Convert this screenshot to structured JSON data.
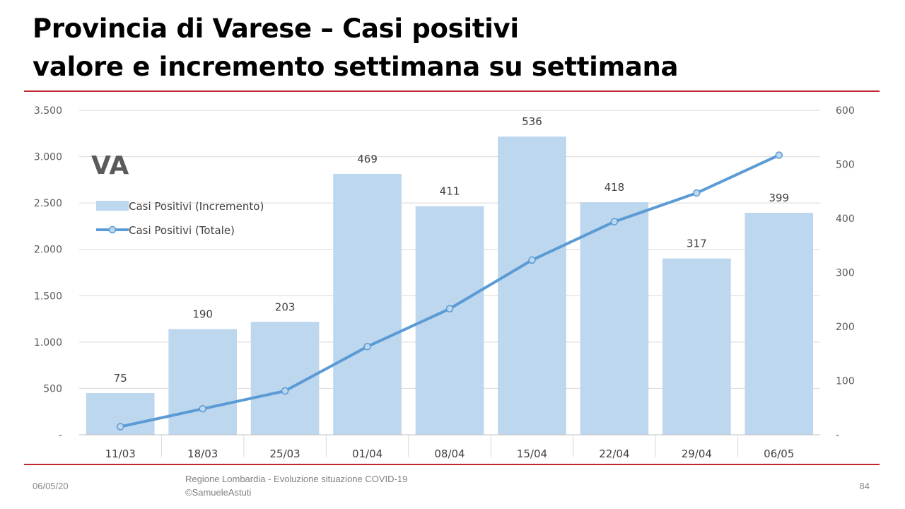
{
  "slide": {
    "title_line1": "Provincia di Varese – Casi positivi",
    "title_line2": "valore e incremento settimana su settimana",
    "footer_date": "06/05/20",
    "footer_source_line1": "Regione Lombardia - Evoluzione situazione COVID-19",
    "footer_source_line2": "©SamueleAstuti",
    "page_number": "84",
    "accent_color": "#c0282d"
  },
  "chart_data": {
    "type": "bar+line",
    "annotation": "VA",
    "categories": [
      "11/03",
      "18/03",
      "25/03",
      "01/04",
      "08/04",
      "15/04",
      "22/04",
      "29/04",
      "06/05"
    ],
    "series": [
      {
        "name": "Casi Positivi (Incremento)",
        "type": "bar",
        "axis": "left",
        "color": "#bdd7ee",
        "values": [
          75,
          190,
          203,
          469,
          411,
          536,
          418,
          317,
          399
        ],
        "data_labels": [
          "75",
          "190",
          "203",
          "469",
          "411",
          "536",
          "418",
          "317",
          "399"
        ]
      },
      {
        "name": "Casi Positivi (Totale)",
        "type": "line",
        "axis": "right",
        "color": "#5b9bd5",
        "values": [
          15,
          48,
          81,
          163,
          233,
          323,
          394,
          447,
          517
        ]
      }
    ],
    "left_axis": {
      "min": 0,
      "max": 3500,
      "ticks": [
        "-",
        "500",
        "1.000",
        "1.500",
        "2.000",
        "2.500",
        "3.000",
        "3.500"
      ]
    },
    "right_axis": {
      "min": 0,
      "max": 600,
      "ticks": [
        "-",
        "100",
        "200",
        "300",
        "400",
        "500",
        "600"
      ]
    },
    "grid": true,
    "legend_position": "top-left"
  }
}
